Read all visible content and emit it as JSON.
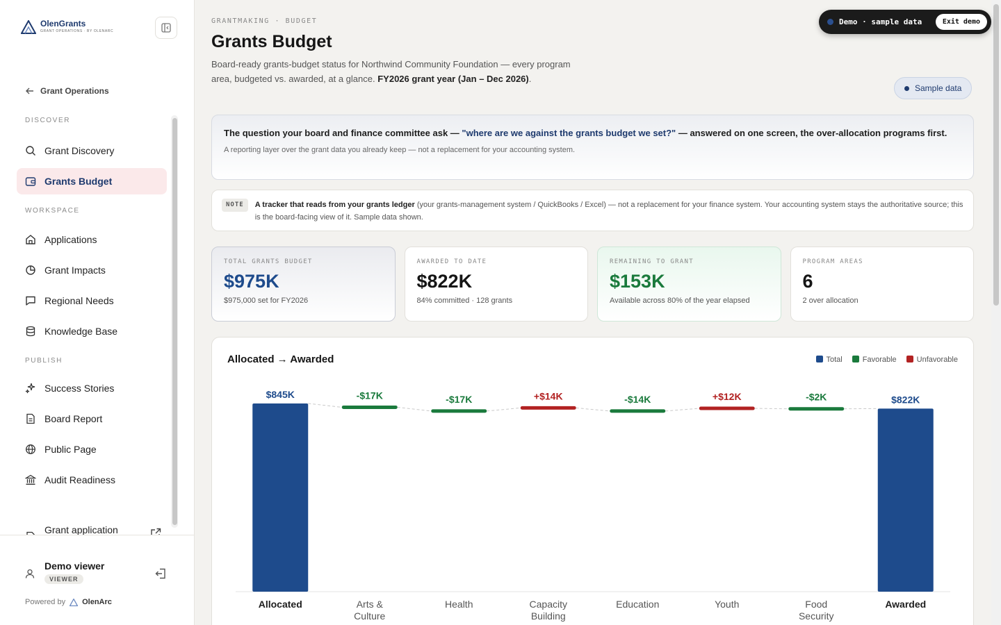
{
  "brand": {
    "name": "OlenGrants",
    "tagline": "GRANT OPERATIONS · BY OLENARC",
    "accent": "#1e3a6e"
  },
  "sidebar": {
    "back_label": "Grant Operations",
    "sections": [
      "DISCOVER",
      "WORKSPACE",
      "PUBLISH"
    ],
    "items": [
      {
        "label": "Grant Discovery",
        "icon": "search-icon"
      },
      {
        "label": "Grants Budget",
        "icon": "wallet-icon",
        "active": true
      },
      {
        "label": "Applications",
        "icon": "home-icon"
      },
      {
        "label": "Grant Impacts",
        "icon": "pie-chart-icon"
      },
      {
        "label": "Regional Needs",
        "icon": "message-icon"
      },
      {
        "label": "Knowledge Base",
        "icon": "database-icon"
      },
      {
        "label": "Success Stories",
        "icon": "sparkles-icon"
      },
      {
        "label": "Board Report",
        "icon": "document-icon"
      },
      {
        "label": "Public Page",
        "icon": "globe-icon"
      },
      {
        "label": "Audit Readiness",
        "icon": "landmark-icon"
      },
      {
        "label": "Grant application form",
        "icon": "form-icon"
      }
    ],
    "user": {
      "name": "Demo viewer",
      "role": "VIEWER"
    },
    "powered_by": "Powered by",
    "powered_brand": "OlenArc"
  },
  "header": {
    "breadcrumb": "GRANTMAKING · BUDGET",
    "title": "Grants Budget",
    "description_pre": "Board-ready grants-budget status for Northwind Community Foundation — every program area, budgeted vs. awarded, at a glance.",
    "description_bold": "FY2026 grant year (Jan – Dec 2026)",
    "description_post": ".",
    "sample_chip": "Sample data"
  },
  "demo_banner": {
    "label": "Demo · sample data",
    "exit_label": "Exit demo"
  },
  "callout": {
    "pre": "The question your board and finance committee ask —",
    "question": "\"where are we against the grants budget we set?\"",
    "post": "— answered on one screen, the over-allocation programs first.",
    "sub": "A reporting layer over the grant data you already keep — not a replacement for your accounting system."
  },
  "note": {
    "tag": "NOTE",
    "bold": "A tracker that reads from your grants ledger",
    "text": "(your grants-management system / QuickBooks / Excel) — not a replacement for your finance system. Your accounting system stays the authoritative source; this is the board-facing view of it. Sample data shown."
  },
  "kpis": [
    {
      "label": "TOTAL GRANTS BUDGET",
      "value": "$975K",
      "sub": "$975,000 set for FY2026"
    },
    {
      "label": "AWARDED TO DATE",
      "value": "$822K",
      "sub": "84% committed · 128 grants"
    },
    {
      "label": "REMAINING TO GRANT",
      "value": "$153K",
      "sub": "Available across 80% of the year elapsed"
    },
    {
      "label": "PROGRAM AREAS",
      "value": "6",
      "sub": "2 over allocation"
    }
  ],
  "chart_data": {
    "type": "bar",
    "subtype": "waterfall",
    "title": "Allocated → Awarded",
    "legend": [
      "Total",
      "Favorable",
      "Unfavorable"
    ],
    "legend_placement": "top-right",
    "colors": {
      "Total": "#1e4b8c",
      "Favorable": "#1a7a3c",
      "Unfavorable": "#b22222"
    },
    "categories": [
      "Allocated",
      "Arts & Culture",
      "Health",
      "Capacity Building",
      "Education",
      "Youth",
      "Food Security",
      "Awarded"
    ],
    "values": [
      845,
      -17,
      -17,
      14,
      -14,
      12,
      -2,
      822
    ],
    "kinds": [
      "total",
      "favorable",
      "favorable",
      "unfavorable",
      "favorable",
      "unfavorable",
      "favorable",
      "total"
    ],
    "labels": [
      "$845K",
      "-$17K",
      "-$17K",
      "+$14K",
      "-$14K",
      "+$12K",
      "-$2K",
      "$822K"
    ],
    "units": "$K",
    "ylim": [
      0,
      845
    ]
  }
}
